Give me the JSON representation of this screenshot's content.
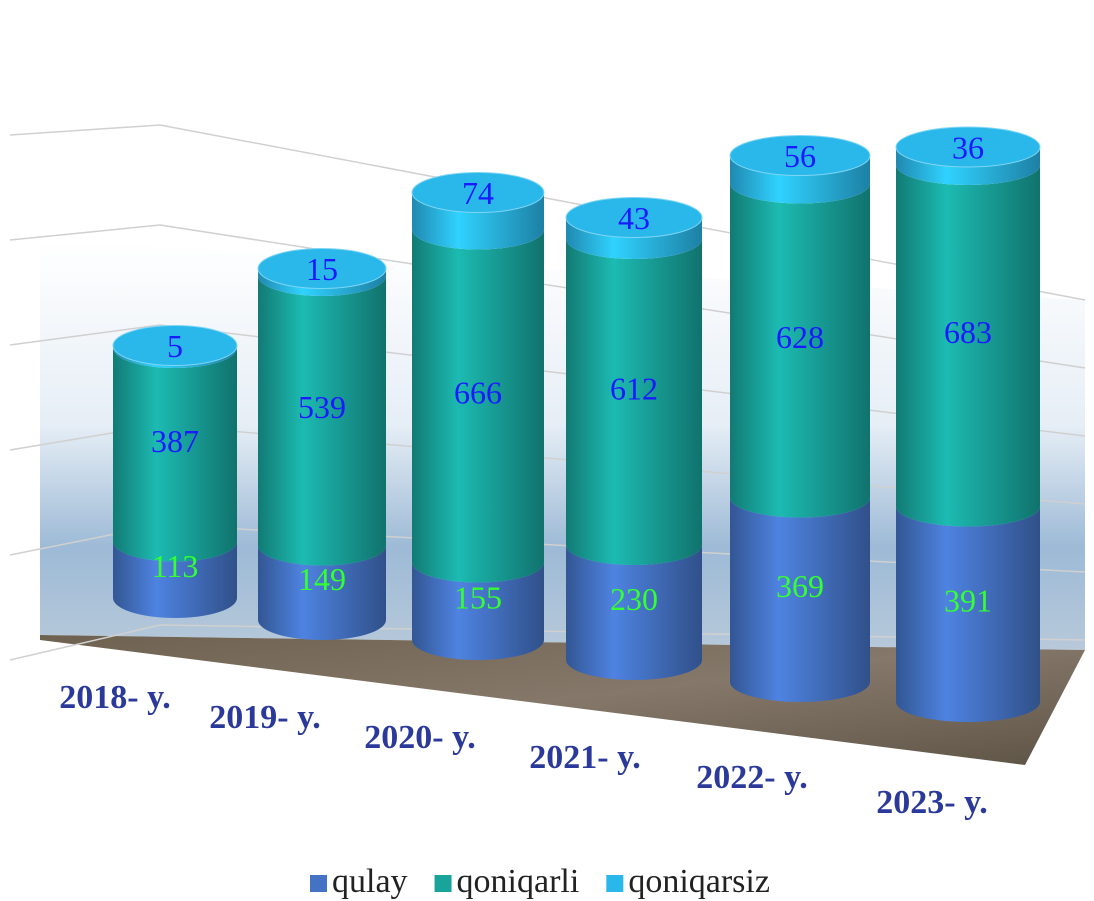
{
  "chart_data": {
    "type": "bar3d_stacked",
    "categories": [
      "2018- y.",
      "2019- y.",
      "2020- y.",
      "2021- y.",
      "2022- y.",
      "2023- y."
    ],
    "series": [
      {
        "name": "qulay",
        "color": "#4472c4",
        "label_color": "#33ff33",
        "values": [
          113,
          149,
          155,
          230,
          369,
          391
        ]
      },
      {
        "name": "qoniqarli",
        "color": "#18a39b",
        "label_color": "#1a1aff",
        "values": [
          387,
          539,
          666,
          612,
          628,
          683
        ]
      },
      {
        "name": "qoniqarsiz",
        "color": "#2ab7ea",
        "label_color": "#1a1aff",
        "values": [
          5,
          15,
          74,
          43,
          56,
          36
        ]
      }
    ],
    "ylim": [
      0,
      1000
    ],
    "yticks": [
      0,
      200,
      400,
      600,
      800,
      1000
    ],
    "grid": true
  }
}
